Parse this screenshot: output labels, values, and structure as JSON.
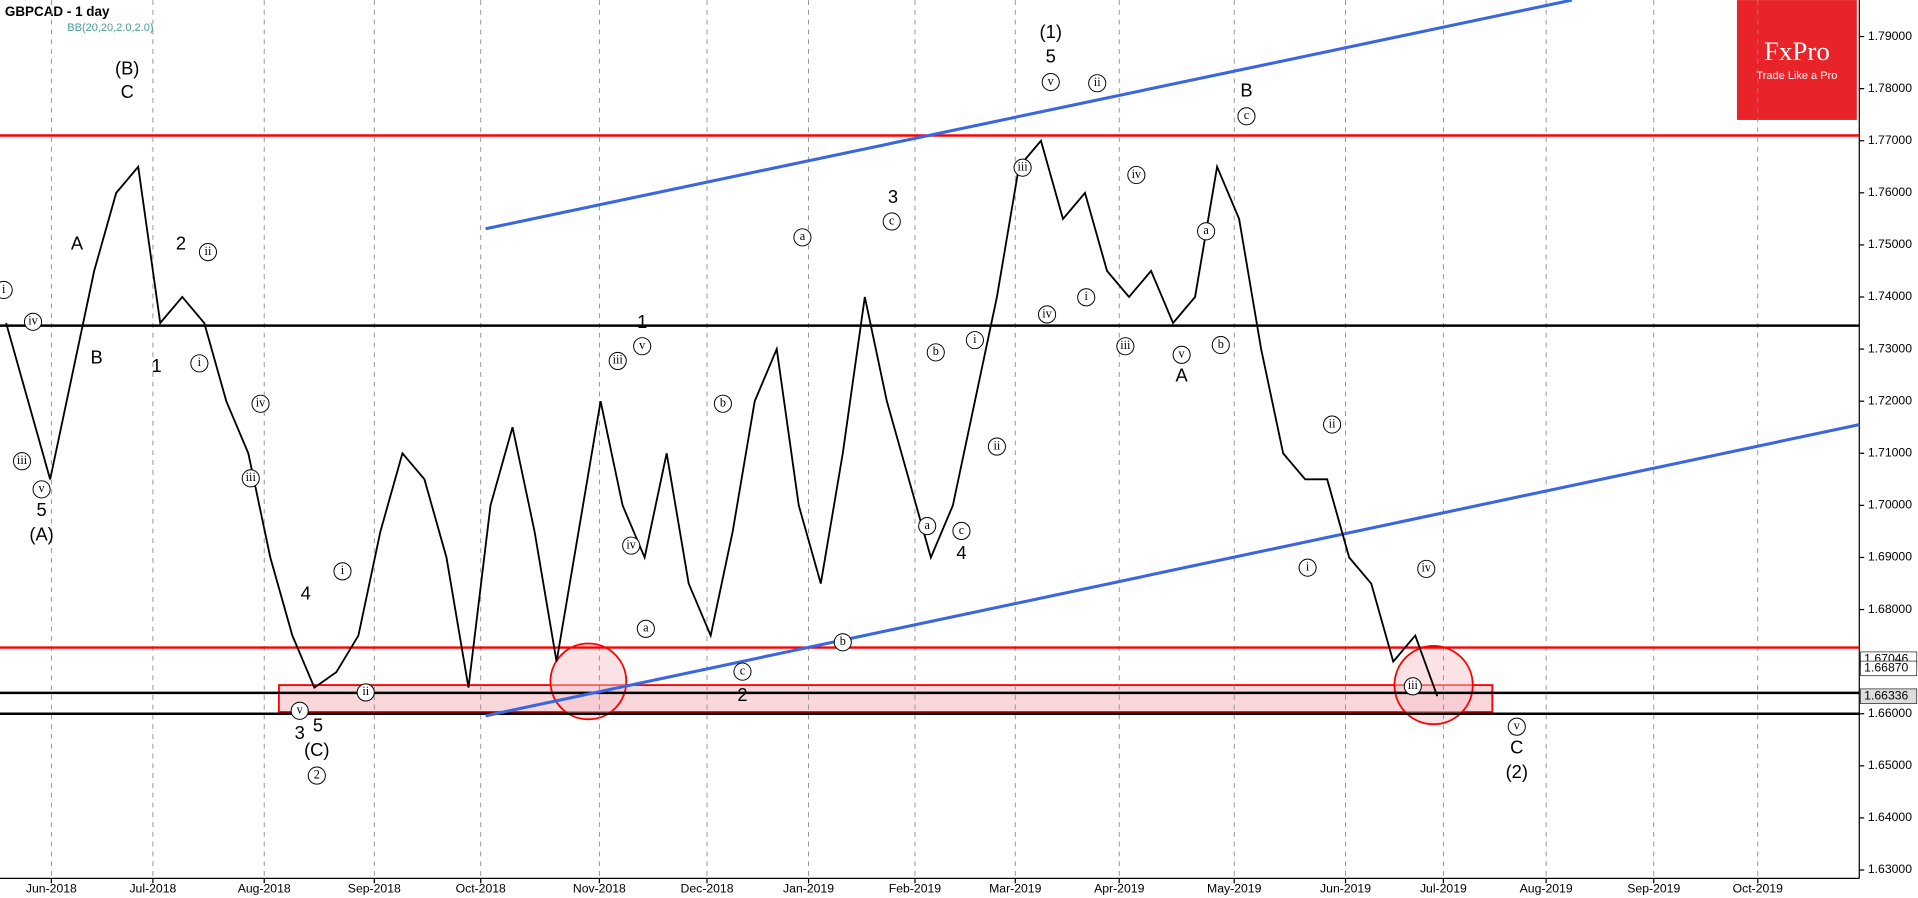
{
  "chart_data": {
    "type": "line",
    "title": "GBPCAD - 1 day",
    "subtitle": "BB(20,20,2.0,2.0)",
    "logo": "FxPro",
    "slogan": "Trade Like a Pro",
    "color": "#000000",
    "grid": true,
    "ylim": [
      1.6284,
      1.797
    ],
    "yticks": [
      {
        "value": 1.79,
        "label": "1.79000"
      },
      {
        "value": 1.78,
        "label": "1.78000"
      },
      {
        "value": 1.77,
        "label": "1.77000"
      },
      {
        "value": 1.76,
        "label": "1.76000"
      },
      {
        "value": 1.75,
        "label": "1.75000"
      },
      {
        "value": 1.74,
        "label": "1.74000"
      },
      {
        "value": 1.73,
        "label": "1.73000"
      },
      {
        "value": 1.72,
        "label": "1.72000"
      },
      {
        "value": 1.71,
        "label": "1.71000"
      },
      {
        "value": 1.7,
        "label": "1.70000"
      },
      {
        "value": 1.69,
        "label": "1.69000"
      },
      {
        "value": 1.68,
        "label": "1.68000"
      },
      {
        "value": 1.66,
        "label": "1.66000"
      },
      {
        "value": 1.65,
        "label": "1.65000"
      },
      {
        "value": 1.64,
        "label": "1.64000"
      },
      {
        "value": 1.63,
        "label": "1.63000"
      }
    ],
    "price_labels": [
      {
        "value": 1.67046,
        "label": "1.67046"
      },
      {
        "value": 1.6687,
        "label": "1.66870"
      },
      {
        "value": 1.66336,
        "label": "1.66336"
      }
    ],
    "xticks": [
      "Jun-2018",
      "Jul-2018",
      "Aug-2018",
      "Sep-2018",
      "Oct-2018",
      "Nov-2018",
      "Dec-2018",
      "Jan-2019",
      "Feb-2019",
      "Mar-2019",
      "Apr-2019",
      "May-2019",
      "Jun-2019",
      "Jul-2019",
      "Aug-2019",
      "Sep-2019",
      "Oct-2019"
    ],
    "values": [
      1.735,
      1.72,
      1.705,
      1.725,
      1.745,
      1.76,
      1.765,
      1.735,
      1.74,
      1.735,
      1.72,
      1.71,
      1.69,
      1.675,
      1.665,
      1.668,
      1.675,
      1.695,
      1.71,
      1.705,
      1.69,
      1.665,
      1.7,
      1.715,
      1.695,
      1.67,
      1.695,
      1.72,
      1.7,
      1.69,
      1.71,
      1.685,
      1.675,
      1.695,
      1.72,
      1.73,
      1.7,
      1.685,
      1.71,
      1.74,
      1.72,
      1.705,
      1.69,
      1.7,
      1.72,
      1.74,
      1.765,
      1.77,
      1.755,
      1.76,
      1.745,
      1.74,
      1.745,
      1.735,
      1.74,
      1.765,
      1.755,
      1.73,
      1.71,
      1.705,
      1.705,
      1.69,
      1.685,
      1.67,
      1.675,
      1.66336
    ],
    "levels": [
      {
        "value": 1.771,
        "color": "#ff0000"
      },
      {
        "value": 1.7345,
        "color": "#000000"
      },
      {
        "value": 1.6727,
        "color": "#ff0000"
      },
      {
        "value": 1.664,
        "color": "#000000"
      },
      {
        "value": 1.66,
        "color": "#000000"
      }
    ],
    "trendlines": [
      [
        1.7531,
        1.797
      ],
      [
        1.6596,
        1.7155
      ]
    ],
    "annotations": [
      "(B)",
      "C",
      "A",
      "B",
      "1",
      "2",
      "5",
      "(A)",
      "4",
      "3",
      "5",
      "(C)",
      "1",
      "3",
      "4",
      "2",
      "(1)",
      "5",
      "B",
      "A",
      "C",
      "(2)"
    ],
    "wave_marks": [
      "i",
      "iv",
      "iii",
      "v",
      "ii",
      "i",
      "iv",
      "iii",
      "i",
      "ii",
      "v",
      "2",
      "iii",
      "v",
      "iv",
      "a",
      "b",
      "c",
      "a",
      "b",
      "c",
      "b",
      "a",
      "c",
      "i",
      "ii",
      "v",
      "ii",
      "iii",
      "iv",
      "i",
      "iv",
      "iii",
      "a",
      "v",
      "b",
      "c",
      "ii",
      "i",
      "iv",
      "iii",
      "v"
    ]
  }
}
